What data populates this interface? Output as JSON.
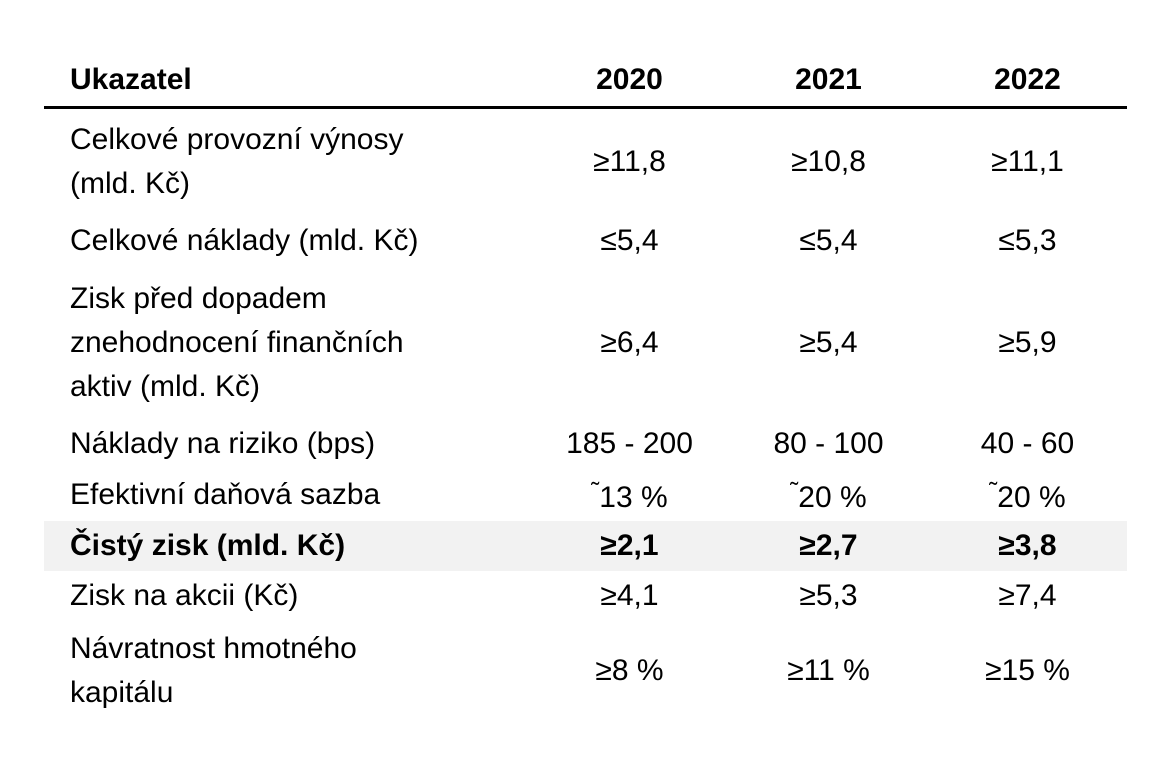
{
  "table": {
    "header": {
      "label": "Ukazatel",
      "years": [
        "2020",
        "2021",
        "2022"
      ]
    },
    "rows": [
      {
        "label_lines": [
          "Celkové provozní výnosy",
          "(mld. Kč)"
        ],
        "values": [
          "≥11,8",
          "≥10,8",
          "≥11,1"
        ]
      },
      {
        "label_lines": [
          "Celkové náklady (mld. Kč)"
        ],
        "values": [
          "≤5,4",
          "≤5,4",
          "≤5,3"
        ]
      },
      {
        "label_lines": [
          "Zisk před dopadem",
          "znehodnocení finančních",
          "aktiv (mld. Kč)"
        ],
        "values": [
          "≥6,4",
          "≥5,4",
          "≥5,9"
        ]
      },
      {
        "label_lines": [
          "Náklady na riziko (bps)"
        ],
        "values": [
          "185 - 200",
          "80 - 100",
          "40 - 60"
        ]
      },
      {
        "label_lines": [
          "Efektivní daňová sazba"
        ],
        "tilde": "˜",
        "values": [
          "13 %",
          "20 %",
          "20 %"
        ]
      },
      {
        "label_lines": [
          "Čistý zisk (mld. Kč)"
        ],
        "values": [
          "≥2,1",
          "≥2,7",
          "≥3,8"
        ],
        "highlight_color": "#f2f2f2"
      },
      {
        "label_lines": [
          "Zisk na akcii (Kč)"
        ],
        "values": [
          "≥4,1",
          "≥5,3",
          "≥7,4"
        ]
      },
      {
        "label_lines": [
          "Návratnost hmotného",
          "kapitálu"
        ],
        "values": [
          "≥8 %",
          "≥11 %",
          "≥15 %"
        ]
      }
    ]
  }
}
